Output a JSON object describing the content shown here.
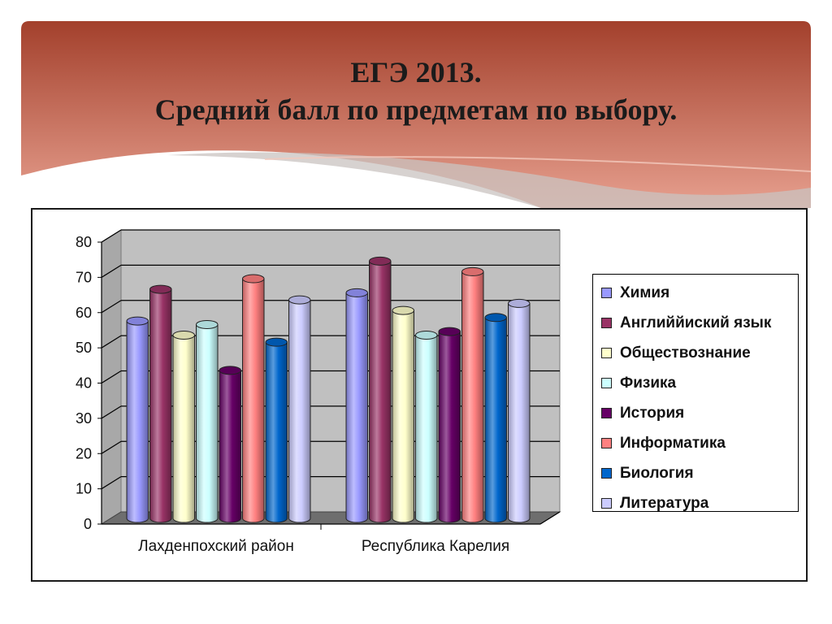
{
  "slide": {
    "title_line1": "ЕГЭ 2013.",
    "title_line2": "Средний балл по предметам по выбору.",
    "banner_color_top": "#a3402c",
    "banner_color_bottom": "#e7a08f"
  },
  "chart_data": {
    "type": "bar",
    "categories": [
      "Лахденпохский район",
      "Республика Карелия"
    ],
    "ylim": [
      0,
      80
    ],
    "yticks": [
      0,
      10,
      20,
      30,
      40,
      50,
      60,
      70,
      80
    ],
    "grid": true,
    "legend_position": "right",
    "series": [
      {
        "name": "Химия",
        "color": "#9999ff",
        "values": [
          56,
          64
        ]
      },
      {
        "name": "Английйиский язык",
        "color": "#993366",
        "values": [
          65,
          73
        ]
      },
      {
        "name": "Обществознание",
        "color": "#ffffcc",
        "values": [
          52,
          59
        ]
      },
      {
        "name": "Физика",
        "color": "#ccffff",
        "values": [
          55,
          52
        ]
      },
      {
        "name": "История",
        "color": "#660066",
        "values": [
          42,
          53
        ]
      },
      {
        "name": "Информатика",
        "color": "#ff8080",
        "values": [
          68,
          70
        ]
      },
      {
        "name": "Биология",
        "color": "#0066cc",
        "values": [
          50,
          57
        ]
      },
      {
        "name": "Литература",
        "color": "#ccccff",
        "values": [
          62,
          61
        ]
      }
    ]
  }
}
